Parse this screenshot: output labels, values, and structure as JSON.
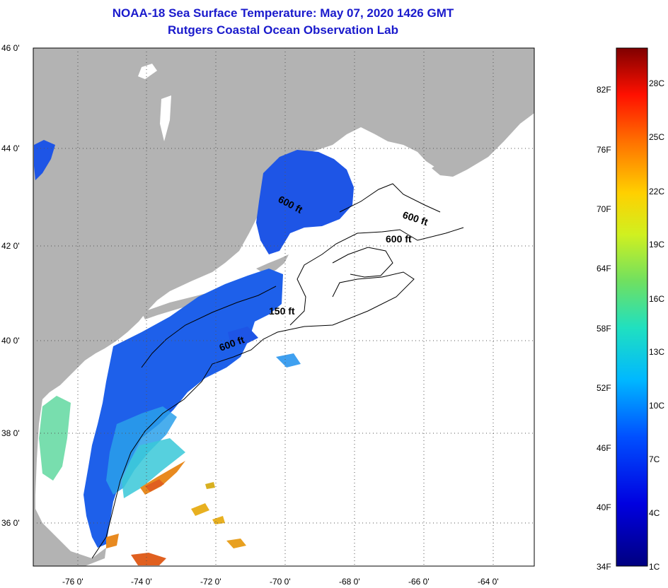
{
  "title_line1": "NOAA-18 Sea Surface Temperature:  May 07, 2020 1426 GMT",
  "title_line2": "Rutgers Coastal Ocean Observation Lab",
  "lat_labels": [
    "46 0'",
    "44 0'",
    "42 0'",
    "40 0'",
    "38 0'",
    "36 0'"
  ],
  "lon_labels": [
    "-76 0'",
    "-74 0'",
    "-72 0'",
    "-70 0'",
    "-68 0'",
    "-66 0'",
    "-64 0'"
  ],
  "contour_labels": [
    "600 ft",
    "600 ft",
    "600 ft",
    "150 ft",
    "600 ft"
  ],
  "colorbar": {
    "fahrenheit": [
      "82F",
      "76F",
      "70F",
      "64F",
      "58F",
      "52F",
      "46F",
      "40F",
      "34F"
    ],
    "celsius": [
      "28C",
      "25C",
      "22C",
      "19C",
      "16C",
      "13C",
      "10C",
      "7C",
      "4C",
      "1C"
    ]
  },
  "colors": {
    "land": "#b3b3b3",
    "title": "#1a1acc",
    "cold_water": "#1e55e6",
    "warm_water": "#e06020"
  }
}
